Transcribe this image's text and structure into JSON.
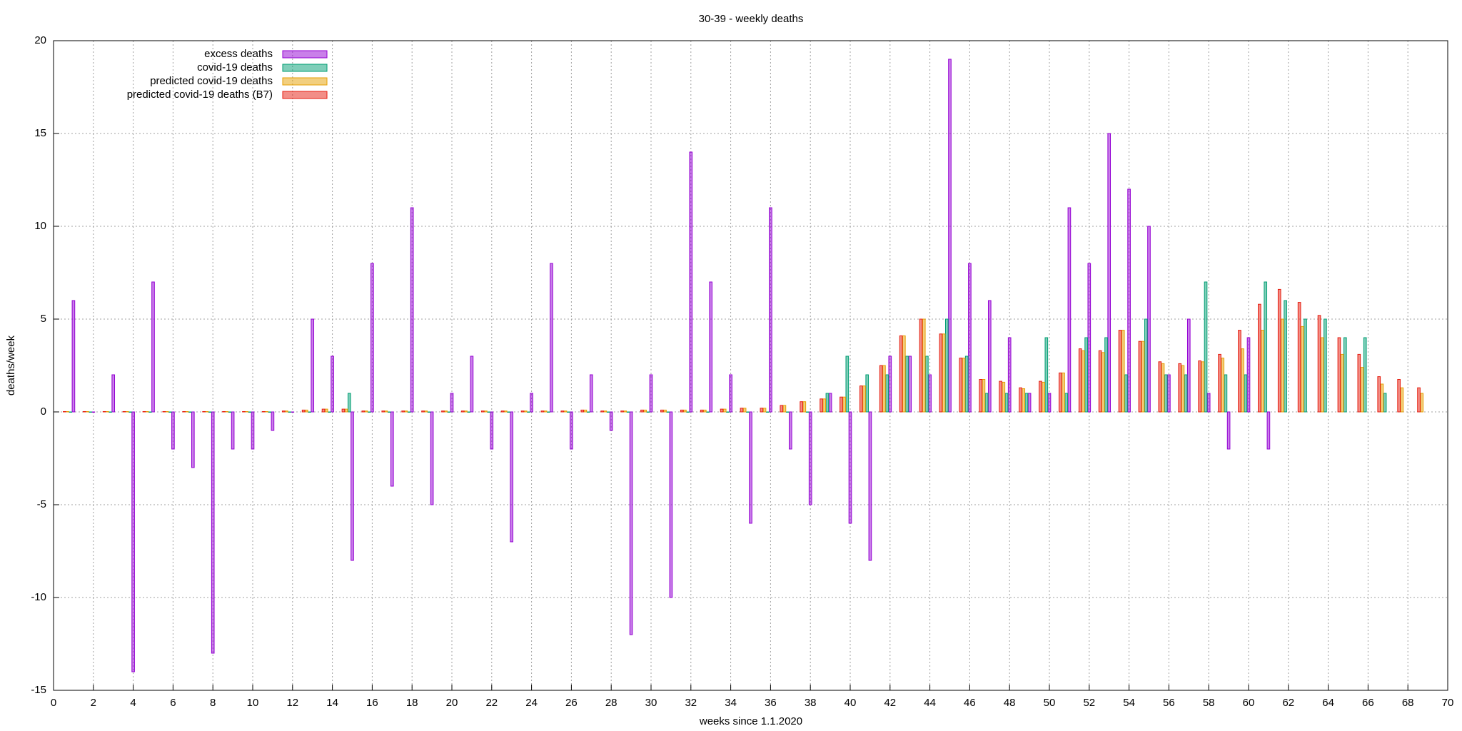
{
  "chart_data": {
    "type": "bar",
    "title": "30-39 - weekly deaths",
    "x_label": "weeks since 1.1.2020",
    "y_label": "deaths/week",
    "x": [
      1,
      2,
      3,
      4,
      5,
      6,
      7,
      8,
      9,
      10,
      11,
      12,
      13,
      14,
      15,
      16,
      17,
      18,
      19,
      20,
      21,
      22,
      23,
      24,
      25,
      26,
      27,
      28,
      29,
      30,
      31,
      32,
      33,
      34,
      35,
      36,
      37,
      38,
      39,
      40,
      41,
      42,
      43,
      44,
      45,
      46,
      47,
      48,
      49,
      50,
      51,
      52,
      53,
      54,
      55,
      56,
      57,
      58,
      59,
      60,
      61,
      62,
      63,
      64,
      65,
      66,
      67,
      68,
      69
    ],
    "xlim": [
      0,
      70
    ],
    "xticks": [
      0,
      2,
      4,
      6,
      8,
      10,
      12,
      14,
      16,
      18,
      20,
      22,
      24,
      26,
      28,
      30,
      32,
      34,
      36,
      38,
      40,
      42,
      44,
      46,
      48,
      50,
      52,
      54,
      56,
      58,
      60,
      62,
      64,
      66,
      68,
      70
    ],
    "ylim": [
      -15,
      20
    ],
    "yticks": [
      -15,
      -10,
      -5,
      0,
      5,
      10,
      15,
      20
    ],
    "grid": true,
    "legend": "top-left",
    "series": [
      {
        "name": "excess deaths",
        "color": "#9400d3",
        "values": [
          6,
          0,
          2,
          -14,
          7,
          -2,
          -3,
          -13,
          -2,
          -2,
          -1,
          0,
          5,
          3,
          -8,
          8,
          -4,
          11,
          -5,
          1,
          3,
          -2,
          -7,
          1,
          8,
          -2,
          2,
          -1,
          -12,
          2,
          -10,
          14,
          7,
          2,
          -6,
          11,
          -2,
          -5,
          1,
          -6,
          -8,
          3,
          3,
          2,
          19,
          8,
          6,
          4,
          1,
          1,
          11,
          8,
          15,
          12,
          10,
          2,
          5,
          1,
          -2,
          4,
          -2,
          null,
          null,
          null,
          null,
          null,
          null,
          null,
          null
        ]
      },
      {
        "name": "covid-19 deaths",
        "color": "#009e73",
        "values": [
          0,
          0,
          0,
          0,
          0,
          0,
          0,
          0,
          0,
          0,
          0,
          0,
          0,
          0,
          1,
          0,
          0,
          0,
          0,
          0,
          0,
          0,
          0,
          0,
          0,
          0,
          0,
          0,
          0,
          0,
          0,
          0,
          0,
          0,
          0,
          0,
          0,
          0,
          1,
          3,
          2,
          2,
          3,
          3,
          5,
          3,
          1,
          1,
          1,
          4,
          1,
          4,
          4,
          2,
          5,
          2,
          2,
          7,
          2,
          2,
          7,
          6,
          5,
          5,
          4,
          4,
          1,
          null,
          null
        ]
      },
      {
        "name": "predicted covid-19 deaths",
        "color": "#e69f00",
        "values": [
          0.02,
          0.02,
          0.02,
          0.02,
          0.02,
          0.02,
          0.02,
          0.02,
          0.02,
          0.02,
          0.02,
          0.05,
          0.1,
          0.15,
          0.15,
          0.05,
          0.05,
          0.05,
          0.05,
          0.05,
          0.05,
          0.05,
          0.05,
          0.05,
          0.05,
          0.05,
          0.1,
          0.05,
          0.05,
          0.1,
          0.1,
          0.1,
          0.1,
          0.15,
          0.2,
          0.2,
          0.35,
          0.55,
          0.7,
          0.8,
          1.4,
          2.5,
          4.1,
          5,
          4.2,
          2.9,
          1.75,
          1.6,
          1.25,
          1.6,
          2.1,
          3.3,
          3.2,
          4.4,
          3.8,
          2.6,
          2.5,
          2.7,
          2.9,
          3.4,
          4.4,
          5,
          4.6,
          4,
          3.1,
          2.4,
          1.5,
          1.3,
          1
        ]
      },
      {
        "name": "predicted covid-19 deaths (B7)",
        "color": "#e51e10",
        "values": [
          0.02,
          0.02,
          0.02,
          0.02,
          0.02,
          0.02,
          0.02,
          0.02,
          0.02,
          0.02,
          0.02,
          0.05,
          0.1,
          0.15,
          0.15,
          0.05,
          0.05,
          0.05,
          0.05,
          0.05,
          0.05,
          0.05,
          0.05,
          0.05,
          0.05,
          0.05,
          0.1,
          0.05,
          0.05,
          0.1,
          0.1,
          0.1,
          0.1,
          0.15,
          0.2,
          0.2,
          0.35,
          0.55,
          0.7,
          0.8,
          1.4,
          2.5,
          4.1,
          5,
          4.2,
          2.9,
          1.75,
          1.65,
          1.3,
          1.65,
          2.1,
          3.4,
          3.3,
          4.4,
          3.8,
          2.7,
          2.6,
          2.75,
          3.1,
          4.4,
          5.8,
          6.6,
          5.9,
          5.2,
          4,
          3.1,
          1.9,
          1.75,
          1.3
        ]
      }
    ]
  }
}
